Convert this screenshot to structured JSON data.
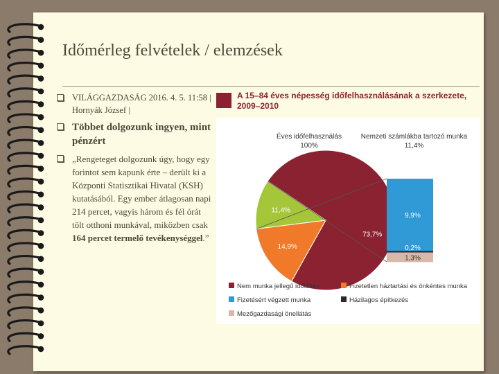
{
  "slide": {
    "title": "Időmérleg felvételek / elemzések",
    "bullets": [
      {
        "text": "VILÁGGAZDASÁG 2016. 4. 5. 11:58 | Hornyák József |"
      },
      {
        "text": "Többet dolgozunk ingyen, mint pénzért"
      },
      {
        "text_before": "„Rengeteget dolgozunk úgy, hogy egy forintot sem kapunk érte – derült ki a Központi Statisztikai Hivatal (KSH) kutatásából. Egy ember átlagosan napi 214 percet, vagyis három és fél órát tölt otthoni munkával, miközben csak ",
        "text_bold": "164 percet termelő tevékenységgel",
        "text_after": ".”"
      }
    ]
  },
  "chart_data": {
    "type": "pie",
    "title": "A 15–84 éves népesség időfelhasználásának a szerkezete, 2009–2010",
    "pie": {
      "heading": "Éves időfelhasználás",
      "total_label": "100%",
      "slices": [
        {
          "label": "Nem munka jellegű időtöltés",
          "value": 73.7,
          "display": "73,7%",
          "color": "#8b2231"
        },
        {
          "label": "Fizetetlen háztartási és önkéntes munka",
          "value": 14.9,
          "display": "14,9%",
          "color": "#f07a2a"
        },
        {
          "label": "Nemzeti számlákba tartozó munka",
          "value": 11.4,
          "display": "11,4%",
          "color": "#a6c63a"
        }
      ]
    },
    "bar": {
      "heading": "Nemzeti számlákba tartozó munka",
      "total_label": "11,4%",
      "segments": [
        {
          "label": "Fizetésért végzett munka",
          "value": 9.9,
          "display": "9,9%",
          "color": "#2f9ad6"
        },
        {
          "label": "Házilagos építkezés",
          "value": 0.2,
          "display": "0,2%",
          "color": "#2a2a2a"
        },
        {
          "label": "Mezőgazdasági önellátás",
          "value": 1.3,
          "display": "1,3%",
          "color": "#d8b8a8"
        }
      ]
    },
    "legend": {
      "placement": "bottom",
      "items": [
        {
          "label": "Nem munka jellegű időtöltés",
          "color": "#8b2231"
        },
        {
          "label": "Fizetetlen háztartási és önkéntes munka",
          "color": "#f07a2a"
        },
        {
          "label": "Fizetésért végzett munka",
          "color": "#2f9ad6"
        },
        {
          "label": "Házilagos építkezés",
          "color": "#2a2a2a"
        },
        {
          "label": "Mezőgazdasági önellátás",
          "color": "#d8b8a8"
        }
      ]
    }
  }
}
